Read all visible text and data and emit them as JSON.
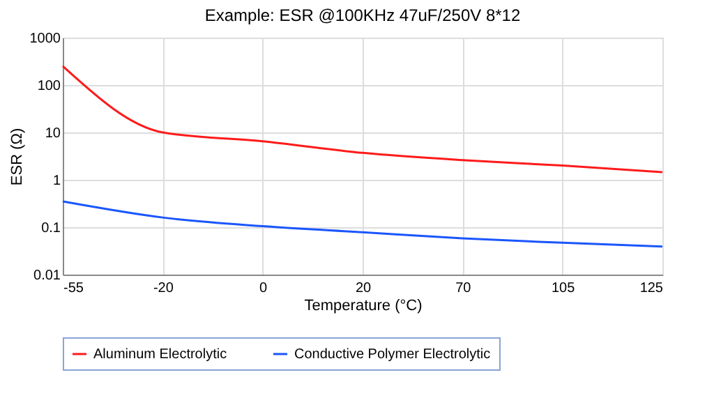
{
  "chart_data": {
    "type": "line",
    "title": "Example: ESR @100KHz 47uF/250V 8*12",
    "xlabel": "Temperature (°C)",
    "ylabel": "ESR (Ω)",
    "categories": [
      "-55",
      "-20",
      "0",
      "20",
      "70",
      "105",
      "125"
    ],
    "series": [
      {
        "name": "Aluminum Electrolytic",
        "color": "#ff1a1a",
        "values": [
          250,
          10,
          6.5,
          3.7,
          2.6,
          2.0,
          1.45
        ]
      },
      {
        "name": "Conductive Polymer Electrolytic",
        "color": "#1a56ff",
        "values": [
          0.35,
          0.16,
          0.105,
          0.078,
          0.058,
          0.047,
          0.039
        ]
      }
    ],
    "log": "y",
    "ylim": [
      0.01,
      1000
    ],
    "yticks": [
      0.01,
      0.1,
      1,
      10,
      100,
      1000
    ],
    "grid": true,
    "legend": "bottom",
    "marker": "none",
    "line_style": "solid"
  }
}
